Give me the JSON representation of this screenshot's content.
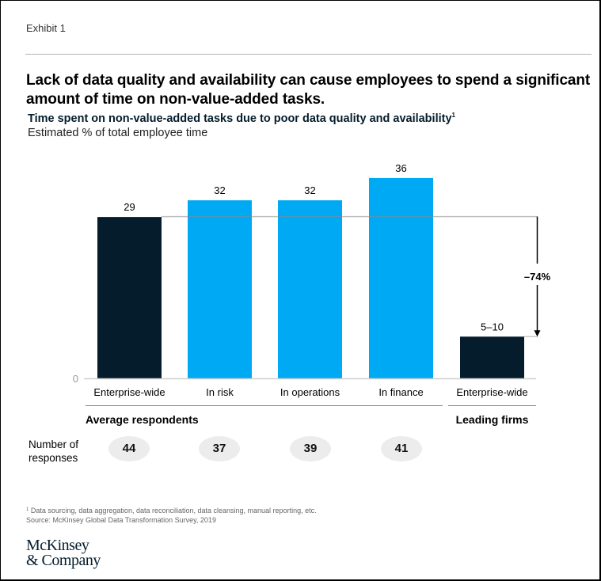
{
  "exhibit_label": "Exhibit 1",
  "title": "Lack of data quality and availability can cause employees to spend a significant amount of time on non-value-added tasks.",
  "subtitle": "Time spent on non-value-added tasks due to poor data quality and availability",
  "subtitle_footnote_marker": "1",
  "unit_label": "Estimated % of total employee time",
  "colors": {
    "dark_navy": "#051c2c",
    "bright_blue": "#00a9f4",
    "reference_line": "#bdbdbd",
    "pill_bg": "#ececec"
  },
  "chart_data": {
    "type": "bar",
    "title": "Time spent on non-value-added tasks due to poor data quality and availability",
    "ylabel": "Estimated % of total employee time",
    "xlabel": "",
    "ylim": [
      0,
      36
    ],
    "y_ticks": [
      "0"
    ],
    "grid": false,
    "categories": [
      "Enterprise-wide",
      "In risk",
      "In operations",
      "In finance",
      "Enterprise-wide"
    ],
    "values": [
      29,
      32,
      32,
      36,
      7.5
    ],
    "value_labels": [
      "29",
      "32",
      "32",
      "36",
      "5–10"
    ],
    "bar_colors": [
      "#051c2c",
      "#00a9f4",
      "#00a9f4",
      "#00a9f4",
      "#051c2c"
    ],
    "groups": [
      {
        "label": "Average respondents",
        "categories": [
          0,
          1,
          2,
          3
        ]
      },
      {
        "label": "Leading firms",
        "categories": [
          4
        ]
      }
    ],
    "reference_line_value": 29,
    "annotation": {
      "label": "–74%",
      "from_value": 29,
      "to_value": 7.5
    }
  },
  "responses": {
    "label_line1": "Number of",
    "label_line2": "responses",
    "values": [
      "44",
      "37",
      "39",
      "41"
    ]
  },
  "footnotes": {
    "marker": "1",
    "note1": "Data sourcing, data aggregation, data reconciliation, data cleansing, manual reporting, etc.",
    "source": "Source: McKinsey Global Data Transformation Survey, 2019"
  },
  "logo": {
    "line1": "McKinsey",
    "line2": "& Company"
  }
}
